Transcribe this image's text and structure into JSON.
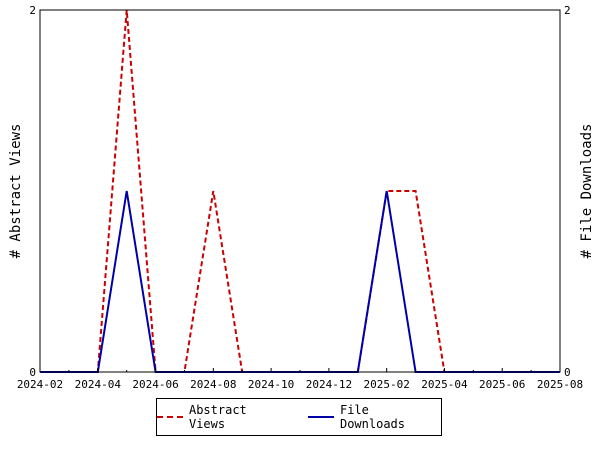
{
  "chart_data": {
    "type": "line",
    "title": "",
    "xlabel": "",
    "ylabel_left": "# Abstract Views",
    "ylabel_right": "# File Downloads",
    "x": [
      "2024-02",
      "2024-03",
      "2024-04",
      "2024-05",
      "2024-06",
      "2024-07",
      "2024-08",
      "2024-09",
      "2024-10",
      "2024-11",
      "2024-12",
      "2025-01",
      "2025-02",
      "2025-03",
      "2025-04",
      "2025-05",
      "2025-06",
      "2025-07",
      "2025-08"
    ],
    "x_ticks": [
      "2024-02",
      "2024-04",
      "2024-06",
      "2024-08",
      "2024-10",
      "2024-12",
      "2025-02",
      "2025-04",
      "2025-06",
      "2025-08"
    ],
    "ylim_left": [
      0,
      2
    ],
    "ylim_right": [
      0,
      2
    ],
    "y_ticks_left": [
      "0",
      "2"
    ],
    "y_ticks_right": [
      "0",
      "2"
    ],
    "grid": false,
    "legend_position": "bottom",
    "series": [
      {
        "name": "Abstract Views",
        "axis": "left",
        "color": "#cc0000",
        "style": "dashed",
        "values": [
          0,
          0,
          0,
          2,
          0,
          0,
          1,
          0,
          0,
          0,
          0,
          0,
          1,
          1,
          0,
          0,
          0,
          0,
          0
        ]
      },
      {
        "name": "File Downloads",
        "axis": "right",
        "color": "#0000aa",
        "style": "solid",
        "values": [
          0,
          0,
          0,
          1,
          0,
          0,
          0,
          0,
          0,
          0,
          0,
          0,
          1,
          0,
          0,
          0,
          0,
          0,
          0
        ]
      }
    ]
  }
}
